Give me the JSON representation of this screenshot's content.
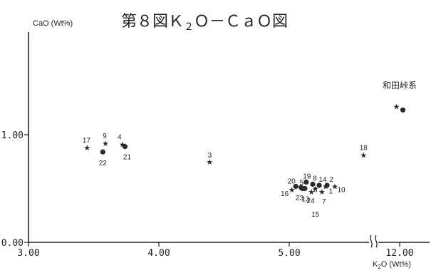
{
  "chart_data": {
    "type": "scatter",
    "title": "第８図Ｋ２Ｏ－ＣａＯ図",
    "title_parts": {
      "before_sub": "第８図Ｋ",
      "sub": "２",
      "after_sub": "Ｏ－ＣａＯ図"
    },
    "xlabel": "K2O (Wt%)",
    "xlabel_parts": {
      "k": "K",
      "sub": "2",
      "rest": "O (Wt%)"
    },
    "ylabel": "CaO (Wt%)",
    "x_ticks": [
      "3.00",
      "4.00",
      "5.00",
      "12.00"
    ],
    "y_ticks": [
      "0.00",
      "1.00"
    ],
    "xlim": [
      3.0,
      5.7
    ],
    "x_break": {
      "after": 5.7,
      "resume": 11.6,
      "label_value": 12.0
    },
    "ylim": [
      0.0,
      1.95
    ],
    "grid": false,
    "markers": {
      "star": "★",
      "circle": "●"
    },
    "series": [
      {
        "marker": "star",
        "points": [
          {
            "label": "17",
            "x": 3.45,
            "y": 0.88
          },
          {
            "label": "9",
            "x": 3.59,
            "y": 0.92
          },
          {
            "label": "4",
            "x": 3.72,
            "y": 0.91
          },
          {
            "label": "3",
            "x": 4.39,
            "y": 0.75
          },
          {
            "label": "16",
            "x": 5.02,
            "y": 0.49
          },
          {
            "label": "24",
            "x": 5.17,
            "y": 0.47
          },
          {
            "label": "6",
            "x": 5.2,
            "y": 0.5
          },
          {
            "label": "7",
            "x": 5.25,
            "y": 0.47
          },
          {
            "label": "1",
            "x": 5.28,
            "y": 0.52
          },
          {
            "label": "10",
            "x": 5.35,
            "y": 0.52
          },
          {
            "label": "18",
            "x": 5.57,
            "y": 0.81
          },
          {
            "label": "",
            "x": 11.95,
            "y": 1.26
          }
        ]
      },
      {
        "marker": "circle",
        "points": [
          {
            "label": "22",
            "x": 3.57,
            "y": 0.84
          },
          {
            "label": "21",
            "x": 3.74,
            "y": 0.89
          },
          {
            "label": "20",
            "x": 5.05,
            "y": 0.52
          },
          {
            "label": "5",
            "x": 5.1,
            "y": 0.5
          },
          {
            "label": "23",
            "x": 5.09,
            "y": 0.51
          },
          {
            "label": "19",
            "x": 5.13,
            "y": 0.56
          },
          {
            "label": "13",
            "x": 5.12,
            "y": 0.5
          },
          {
            "label": "8",
            "x": 5.18,
            "y": 0.54
          },
          {
            "label": "14",
            "x": 5.23,
            "y": 0.53
          },
          {
            "label": "2",
            "x": 5.29,
            "y": 0.53
          },
          {
            "label": "",
            "x": 12.05,
            "y": 1.23
          }
        ]
      }
    ],
    "annotations": [
      {
        "text": "和田峠系",
        "x": 12.0,
        "y": 1.43
      },
      {
        "text": "15",
        "x": 5.2,
        "y": 0.24
      }
    ]
  }
}
